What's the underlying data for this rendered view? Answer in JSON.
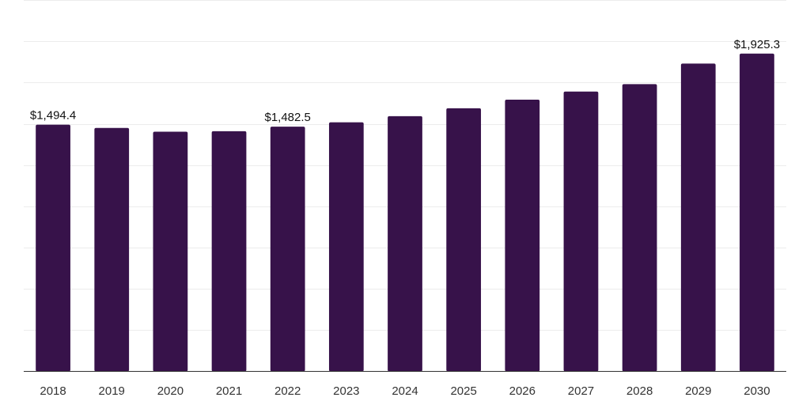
{
  "chart_data": {
    "type": "bar",
    "categories": [
      "2018",
      "2019",
      "2020",
      "2021",
      "2022",
      "2023",
      "2024",
      "2025",
      "2026",
      "2027",
      "2028",
      "2029",
      "2030"
    ],
    "values": [
      1494.4,
      1475,
      1452,
      1455,
      1482.5,
      1509,
      1546,
      1594,
      1646,
      1695,
      1740,
      1865,
      1925.3
    ],
    "data_labels": [
      {
        "index": 0,
        "text": "$1,494.4"
      },
      {
        "index": 4,
        "text": "$1,482.5"
      },
      {
        "index": 12,
        "text": "$1,925.3"
      }
    ],
    "ylim": [
      0,
      2250
    ],
    "grid_step": 250,
    "grid": true,
    "bar_color": "#37124a"
  }
}
